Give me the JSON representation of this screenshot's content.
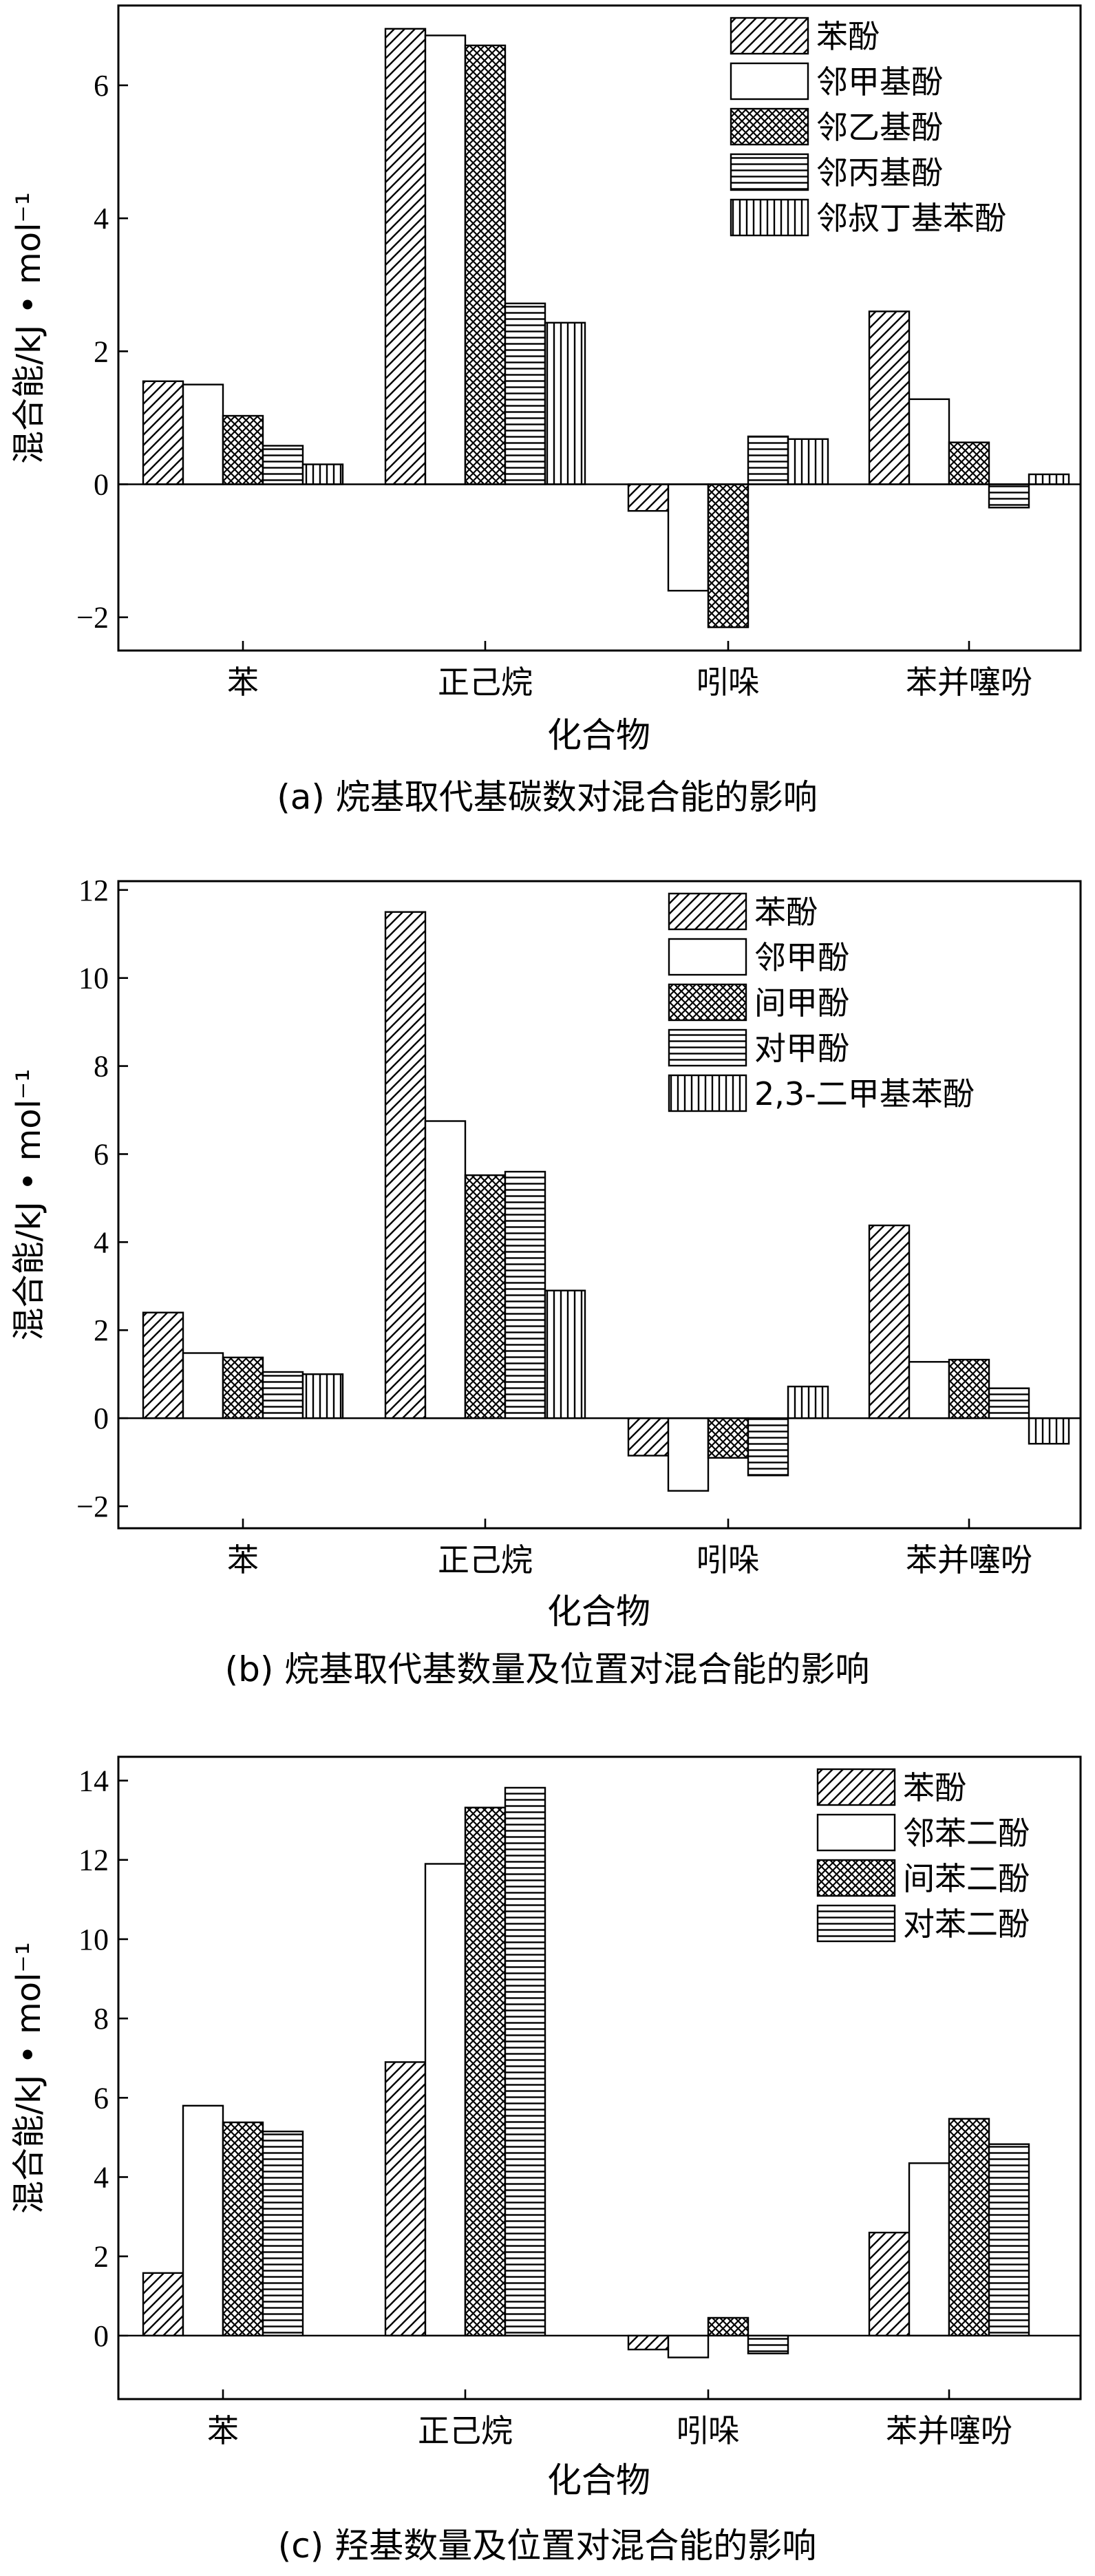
{
  "chart_data": [
    {
      "type": "bar",
      "title": "(a) 烷基取代基碳数对混合能的影响",
      "xlabel": "化合物",
      "ylabel": "混合能/kJ • mol⁻¹",
      "categories": [
        "苯",
        "正己烷",
        "吲哚",
        "苯并噻吩"
      ],
      "ylim": [
        -2.5,
        7.2
      ],
      "yticks": [
        -2,
        0,
        2,
        4,
        6
      ],
      "ytick_labels": [
        "−2",
        "0",
        "2",
        "4",
        "6"
      ],
      "grid": false,
      "legend_position": "top-right",
      "series": [
        {
          "name": "苯酚",
          "pattern": "diag",
          "values": [
            1.55,
            6.85,
            -0.4,
            2.6
          ]
        },
        {
          "name": "邻甲基酚",
          "pattern": "none",
          "values": [
            1.5,
            6.75,
            -1.6,
            1.28
          ]
        },
        {
          "name": "邻乙基酚",
          "pattern": "cross",
          "values": [
            1.03,
            6.6,
            -2.15,
            0.63
          ]
        },
        {
          "name": "邻丙基酚",
          "pattern": "hlines",
          "values": [
            0.58,
            2.72,
            0.72,
            -0.35
          ]
        },
        {
          "name": "邻叔丁基苯酚",
          "pattern": "vlines",
          "values": [
            0.3,
            2.43,
            0.68,
            0.15
          ]
        }
      ]
    },
    {
      "type": "bar",
      "title": "(b) 烷基取代基数量及位置对混合能的影响",
      "xlabel": "化合物",
      "ylabel": "混合能/kJ • mol⁻¹",
      "categories": [
        "苯",
        "正己烷",
        "吲哚",
        "苯并噻吩"
      ],
      "ylim": [
        -2.5,
        12.2
      ],
      "yticks": [
        -2,
        0,
        2,
        4,
        6,
        8,
        10,
        12
      ],
      "ytick_labels": [
        "−2",
        "0",
        "2",
        "4",
        "6",
        "8",
        "10",
        "12"
      ],
      "grid": false,
      "legend_position": "top-right",
      "series": [
        {
          "name": "苯酚",
          "pattern": "diag",
          "values": [
            2.4,
            11.5,
            -0.85,
            4.38
          ]
        },
        {
          "name": "邻甲酚",
          "pattern": "none",
          "values": [
            1.48,
            6.75,
            -1.65,
            1.28
          ]
        },
        {
          "name": "间甲酚",
          "pattern": "cross",
          "values": [
            1.38,
            5.52,
            -0.9,
            1.33
          ]
        },
        {
          "name": "对甲酚",
          "pattern": "hlines",
          "values": [
            1.05,
            5.6,
            -1.3,
            0.68
          ]
        },
        {
          "name": "2,3-二甲基苯酚",
          "pattern": "vlines",
          "values": [
            1.0,
            2.9,
            0.72,
            -0.58
          ]
        }
      ]
    },
    {
      "type": "bar",
      "title": "(c) 羟基数量及位置对混合能的影响",
      "xlabel": "化合物",
      "ylabel": "混合能/kJ • mol⁻¹",
      "categories": [
        "苯",
        "正己烷",
        "吲哚",
        "苯并噻吩"
      ],
      "ylim": [
        -1.6,
        14.6
      ],
      "yticks": [
        0,
        2,
        4,
        6,
        8,
        10,
        12,
        14
      ],
      "ytick_labels": [
        "0",
        "2",
        "4",
        "6",
        "8",
        "10",
        "12",
        "14"
      ],
      "grid": false,
      "legend_position": "top-right",
      "series": [
        {
          "name": "苯酚",
          "pattern": "diag",
          "values": [
            1.58,
            6.9,
            -0.35,
            2.6
          ]
        },
        {
          "name": "邻苯二酚",
          "pattern": "none",
          "values": [
            5.8,
            11.9,
            -0.55,
            4.35
          ]
        },
        {
          "name": "间苯二酚",
          "pattern": "cross",
          "values": [
            5.38,
            13.32,
            0.45,
            5.47
          ]
        },
        {
          "name": "对苯二酚",
          "pattern": "hlines",
          "values": [
            5.15,
            13.82,
            -0.45,
            4.83
          ]
        }
      ]
    }
  ]
}
